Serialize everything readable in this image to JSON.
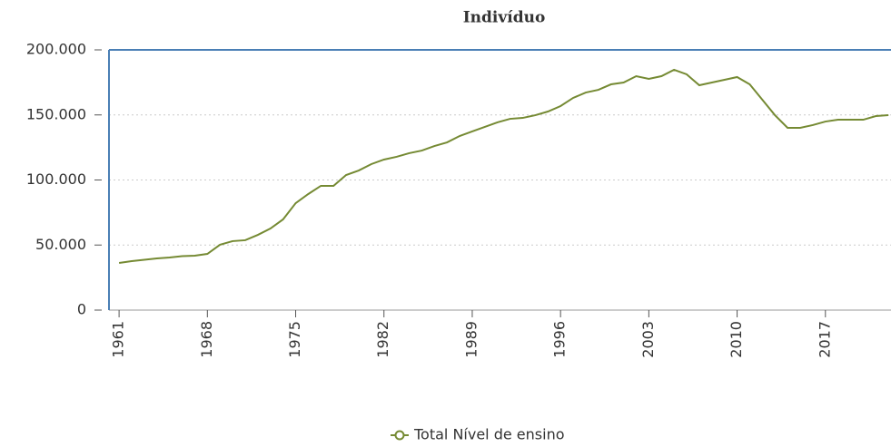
{
  "chart_data": {
    "type": "line",
    "title": "Indivíduo",
    "x": [
      1961,
      1962,
      1963,
      1964,
      1965,
      1966,
      1967,
      1968,
      1969,
      1970,
      1971,
      1972,
      1973,
      1974,
      1975,
      1976,
      1977,
      1978,
      1979,
      1980,
      1981,
      1982,
      1983,
      1984,
      1985,
      1986,
      1987,
      1988,
      1989,
      1990,
      1991,
      1992,
      1993,
      1994,
      1995,
      1996,
      1997,
      1998,
      1999,
      2000,
      2001,
      2002,
      2003,
      2004,
      2005,
      2006,
      2007,
      2008,
      2009,
      2010,
      2011,
      2012,
      2013,
      2014,
      2015,
      2016,
      2017,
      2018,
      2019,
      2020,
      2021,
      2022
    ],
    "series": [
      {
        "name": "Total Nível de ensino",
        "color": "#758a33",
        "values": [
          36200,
          37600,
          38700,
          39700,
          40400,
          41500,
          41800,
          43200,
          50200,
          53000,
          53700,
          57800,
          62700,
          69700,
          82200,
          89200,
          95500,
          95500,
          103800,
          107300,
          112200,
          115700,
          117800,
          120600,
          122600,
          126100,
          128900,
          133800,
          137300,
          140800,
          144300,
          147000,
          147700,
          149800,
          152600,
          156800,
          163100,
          167200,
          169300,
          173500,
          174900,
          179800,
          177700,
          179800,
          184700,
          181200,
          172800,
          174900,
          177000,
          179100,
          173500,
          161700,
          149800,
          140100,
          140100,
          142200,
          144900,
          146300,
          146300,
          146300,
          149100,
          149800
        ]
      }
    ],
    "xlim": [
      1960.2,
      2022.2
    ],
    "xticks": [
      1961,
      1968,
      1975,
      1982,
      1989,
      1996,
      2003,
      2010,
      2017
    ],
    "ylim": [
      0,
      200000
    ],
    "yticks": [
      0,
      {
        "value": 50000,
        "label": "50.000"
      },
      {
        "value": 100000,
        "label": "100.000"
      },
      {
        "value": 150000,
        "label": "150.000"
      },
      {
        "value": 200000,
        "label": "200.000"
      }
    ],
    "grid": true
  }
}
